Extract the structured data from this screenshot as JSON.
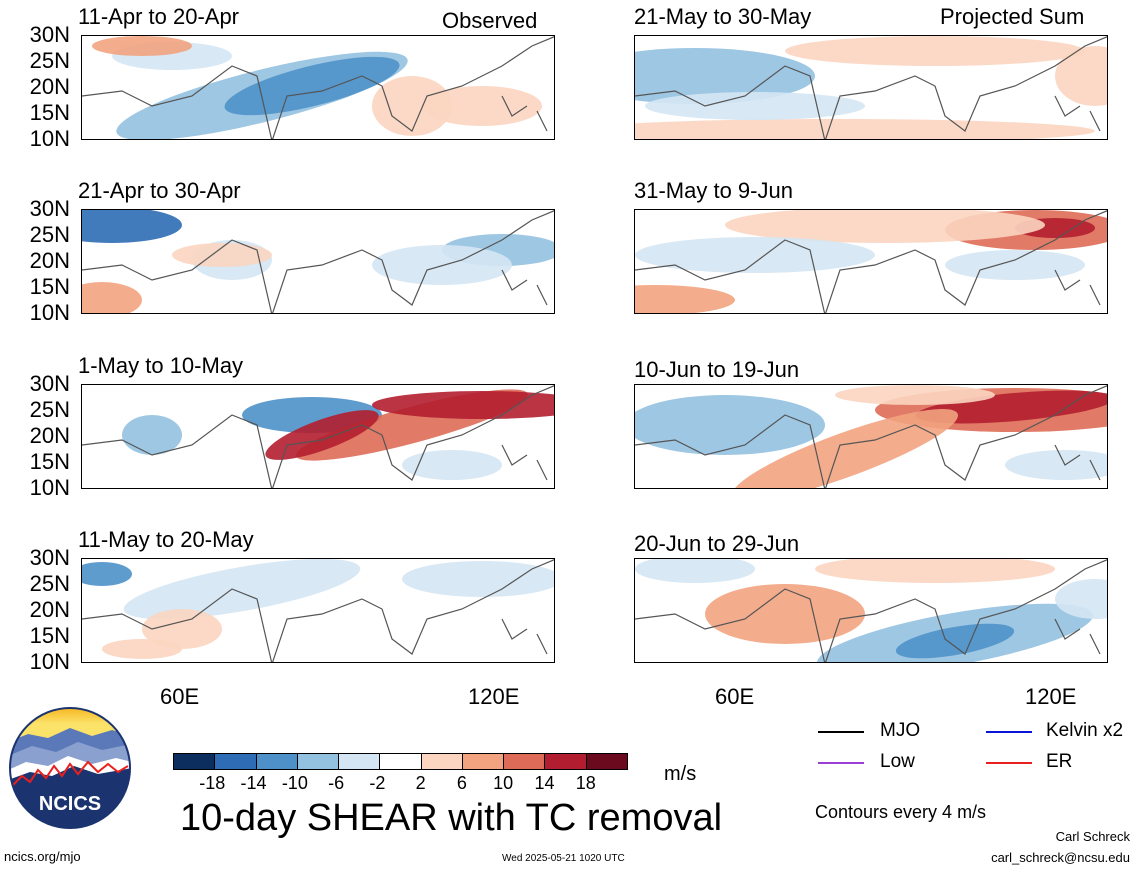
{
  "chart_data": {
    "type": "heatmap",
    "title": "10-day SHEAR with TC removal",
    "units": "m/s",
    "colorbar": {
      "ticks": [
        "-18",
        "-14",
        "-10",
        "-6",
        "-2",
        "2",
        "6",
        "10",
        "14",
        "18"
      ],
      "colors": [
        "#0b2e5e",
        "#2e6db5",
        "#4e91c9",
        "#93c1e0",
        "#d4e6f3",
        "#ffffff",
        "#fbd5c0",
        "#f2a37f",
        "#de6b57",
        "#b21e2f",
        "#6b0a1e"
      ]
    },
    "lat_ticks": [
      "30N",
      "25N",
      "20N",
      "15N",
      "10N"
    ],
    "lon_ticks": [
      "60E",
      "120E"
    ],
    "columns": [
      {
        "label": "Observed",
        "panels": [
          "11-Apr to 20-Apr",
          "21-Apr to 30-Apr",
          "1-May to 10-May",
          "11-May to 20-May"
        ]
      },
      {
        "label": "Projected Sum",
        "panels": [
          "21-May to 30-May",
          "31-May to 9-Jun",
          "10-Jun to 19-Jun",
          "20-Jun to 29-Jun"
        ]
      }
    ],
    "contour_note": "Contours every 4 m/s",
    "legend": [
      {
        "name": "MJO",
        "color": "#000000"
      },
      {
        "name": "Kelvin x2",
        "color": "#0a14d8"
      },
      {
        "name": "Low",
        "color": "#9b3fd6"
      },
      {
        "name": "ER",
        "color": "#e8201e"
      }
    ]
  },
  "footer": {
    "logo_text": "NCICS",
    "site": "ncics.org/mjo",
    "timestamp": "Wed 2025-05-21 1020 UTC",
    "author": "Carl Schreck",
    "email": "carl_schreck@ncsu.edu"
  }
}
